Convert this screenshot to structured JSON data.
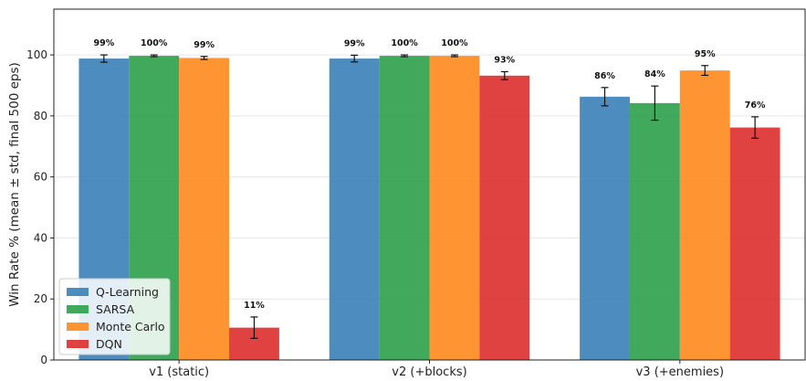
{
  "chart_data": {
    "type": "bar",
    "title": "",
    "xlabel": "",
    "ylabel": "Win Rate % (mean ± std, final 500 eps)",
    "ylim": [
      0,
      115
    ],
    "yticks": [
      0,
      20,
      40,
      60,
      80,
      100
    ],
    "grid": "horizontal",
    "legend_position": "lower-left",
    "categories": [
      "v1 (static)",
      "v2 (+blocks)",
      "v3 (+enemies)"
    ],
    "series": [
      {
        "name": "Q-Learning",
        "color": "#3a7fb8",
        "values": [
          98.8,
          98.8,
          86.3
        ],
        "errors": [
          1.2,
          1.1,
          3.0
        ],
        "labels": [
          "99%",
          "99%",
          "86%"
        ]
      },
      {
        "name": "SARSA",
        "color": "#2ca04a",
        "values": [
          99.7,
          99.7,
          84.2
        ],
        "errors": [
          0.3,
          0.3,
          5.6
        ],
        "labels": [
          "100%",
          "100%",
          "84%"
        ]
      },
      {
        "name": "Monte Carlo",
        "color": "#ff8a1c",
        "values": [
          99.0,
          99.7,
          94.9
        ],
        "errors": [
          0.5,
          0.3,
          1.6
        ],
        "labels": [
          "99%",
          "100%",
          "95%"
        ]
      },
      {
        "name": "DQN",
        "color": "#dd2c2c",
        "values": [
          10.6,
          93.2,
          76.2
        ],
        "errors": [
          3.5,
          1.3,
          3.5
        ],
        "labels": [
          "11%",
          "93%",
          "76%"
        ]
      }
    ]
  }
}
